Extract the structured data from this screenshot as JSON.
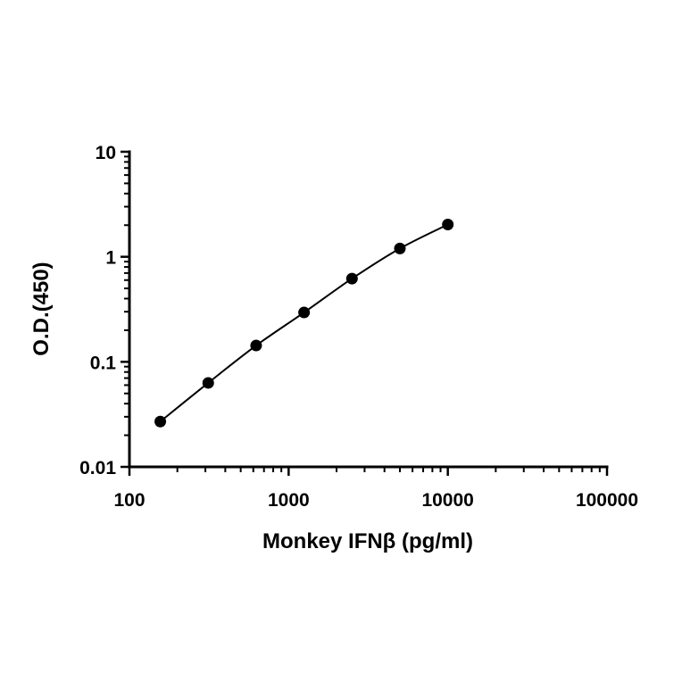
{
  "chart_data": {
    "type": "line",
    "title": "",
    "xlabel": "Monkey IFNβ (pg/ml)",
    "ylabel": "O.D.(450)",
    "x_scale": "log",
    "y_scale": "log",
    "xlim": [
      100,
      100000
    ],
    "ylim": [
      0.01,
      10
    ],
    "x_ticks": [
      100,
      1000,
      10000,
      100000
    ],
    "x_tick_labels": [
      "100",
      "1000",
      "10000",
      "100000"
    ],
    "y_ticks": [
      0.01,
      0.1,
      1,
      10
    ],
    "y_tick_labels": [
      "0.01",
      "0.1",
      "1",
      "10"
    ],
    "grid": false,
    "legend": "none",
    "series": [
      {
        "x": [
          156.25,
          312.5,
          625,
          1250,
          2500,
          5000,
          10000
        ],
        "y": [
          0.027,
          0.063,
          0.143,
          0.295,
          0.62,
          1.2,
          2.03
        ],
        "marker": "circle",
        "color": "#000000"
      }
    ]
  }
}
